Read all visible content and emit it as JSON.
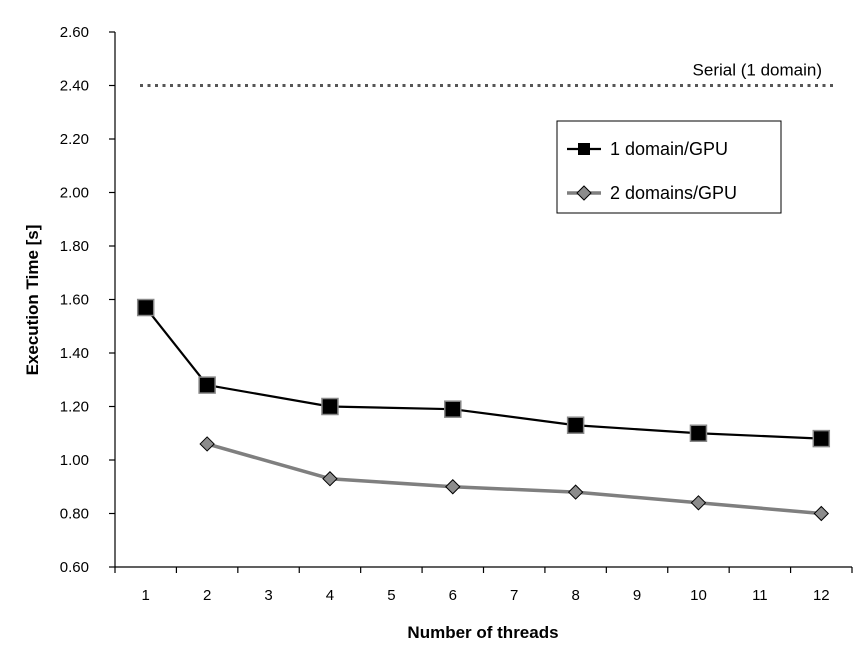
{
  "chart_data": {
    "type": "line",
    "title": "",
    "xlabel": "Number of threads",
    "ylabel": "Execution Time [s]",
    "categories": [
      "1",
      "2",
      "3",
      "4",
      "5",
      "6",
      "7",
      "8",
      "9",
      "10",
      "11",
      "12"
    ],
    "ylim": [
      0.6,
      2.6
    ],
    "yticks": [
      "0.60",
      "0.80",
      "1.00",
      "1.20",
      "1.40",
      "1.60",
      "1.80",
      "2.00",
      "2.20",
      "2.40",
      "2.60"
    ],
    "grid": false,
    "legend_position": "top-right",
    "series": [
      {
        "name": "1 domain/GPU",
        "color": "#000000",
        "marker": "square",
        "values": [
          1.57,
          1.28,
          null,
          1.2,
          null,
          1.19,
          null,
          1.13,
          null,
          1.1,
          null,
          1.08
        ]
      },
      {
        "name": "2 domains/GPU",
        "color": "#7f7f7f",
        "marker": "diamond",
        "values": [
          null,
          1.06,
          null,
          0.93,
          null,
          0.9,
          null,
          0.88,
          null,
          0.84,
          null,
          0.8
        ]
      }
    ],
    "reference_line": {
      "label": "Serial (1 domain)",
      "value": 2.4,
      "style": "dotted",
      "color": "#555555"
    }
  }
}
